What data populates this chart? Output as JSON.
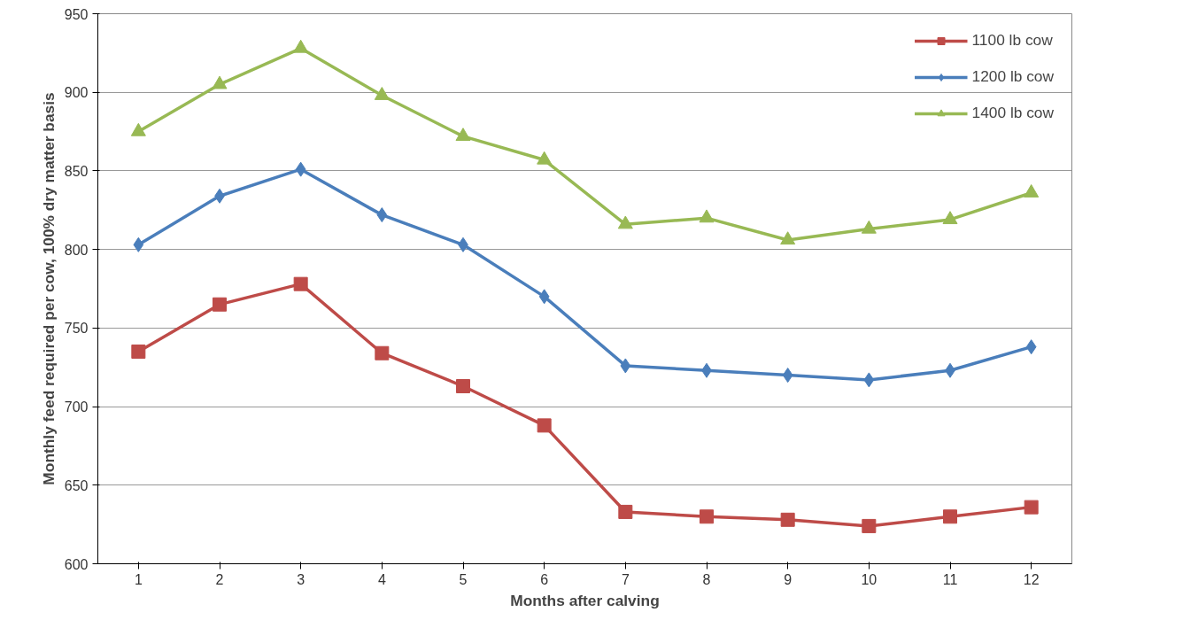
{
  "chart_data": {
    "type": "line",
    "xlabel": "Months after calving",
    "ylabel": "Monthly feed required per cow, 100% dry matter basis",
    "x": [
      1,
      2,
      3,
      4,
      5,
      6,
      7,
      8,
      9,
      10,
      11,
      12
    ],
    "xlim": [
      0.5,
      12.5
    ],
    "xticks": [
      1,
      2,
      3,
      4,
      5,
      6,
      7,
      8,
      9,
      10,
      11,
      12
    ],
    "series": [
      {
        "name": "1100 lb cow",
        "color": "#be4b48",
        "marker": "square",
        "values": [
          735,
          765,
          778,
          734,
          713,
          688,
          633,
          630,
          628,
          624,
          630,
          636
        ]
      },
      {
        "name": "1200 lb cow",
        "color": "#4a7ebb",
        "marker": "diamond",
        "values": [
          803,
          834,
          851,
          822,
          803,
          770,
          726,
          723,
          720,
          717,
          723,
          738
        ]
      },
      {
        "name": "1400 lb cow",
        "color": "#98b954",
        "marker": "triangle",
        "values": [
          875,
          905,
          928,
          898,
          872,
          857,
          816,
          820,
          806,
          813,
          819,
          836
        ]
      }
    ],
    "ylim": [
      600,
      950
    ],
    "yticks": [
      600,
      650,
      700,
      750,
      800,
      850,
      900,
      950
    ],
    "grid": "y",
    "legend": "top right",
    "line_style": "solid"
  }
}
